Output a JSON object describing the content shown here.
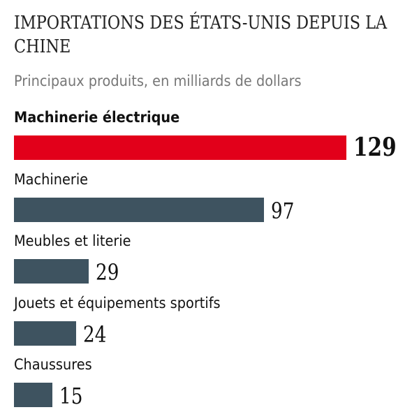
{
  "chart_data": {
    "type": "bar",
    "orientation": "horizontal",
    "title": "IMPORTATIONS DES ÉTATS-UNIS DEPUIS LA CHINE",
    "subtitle": "Principaux produits, en milliards de dollars",
    "categories": [
      "Machinerie électrique",
      "Machinerie",
      "Meubles et literie",
      "Jouets et équipements sportifs",
      "Chaussures"
    ],
    "values": [
      129,
      97,
      29,
      24,
      15
    ],
    "highlight_index": 0,
    "colors": {
      "highlight": "#e2001a",
      "default": "#3e5360"
    },
    "xlim": [
      0,
      129
    ],
    "grid": false,
    "legend": "none"
  }
}
